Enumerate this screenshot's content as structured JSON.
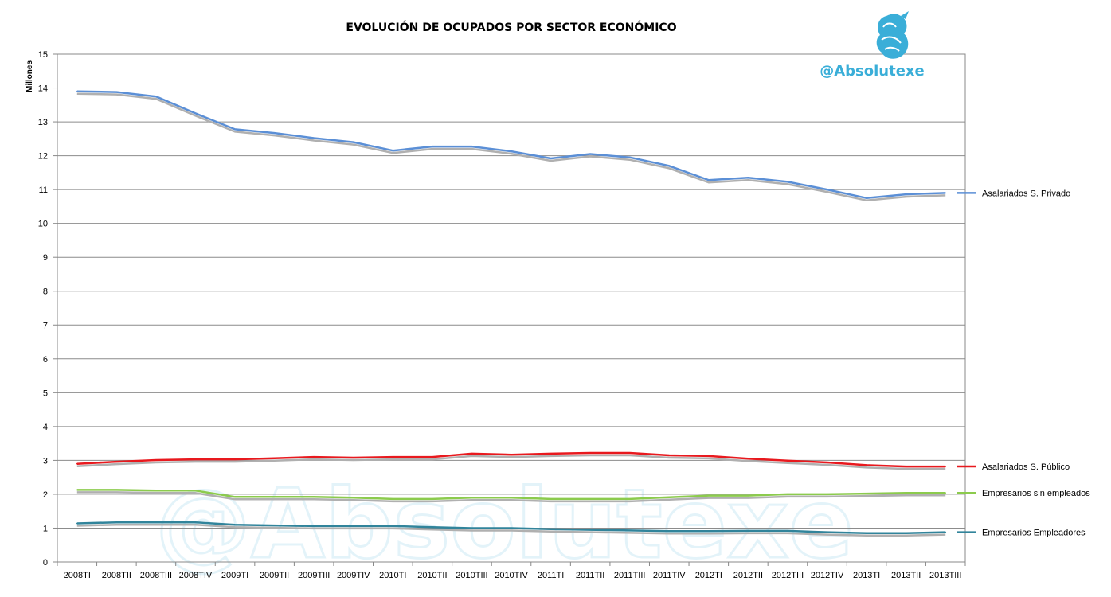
{
  "chart_data": {
    "type": "line",
    "title": "EVOLUCIÓN DE OCUPADOS POR SECTOR ECONÓMICO",
    "ylabel": "Millones",
    "xlabel": "",
    "ylim": [
      0,
      15
    ],
    "yticks": [
      "0",
      "1",
      "2",
      "3",
      "4",
      "5",
      "6",
      "7",
      "8",
      "9",
      "10",
      "11",
      "12",
      "13",
      "14",
      "15"
    ],
    "grid": true,
    "legend_placement": "right",
    "categories": [
      "2008TI",
      "2008TII",
      "2008TIII",
      "2008TIV",
      "2009TI",
      "2009TII",
      "2009TIII",
      "2009TIV",
      "2010TI",
      "2010TII",
      "2010TIII",
      "2010TIV",
      "2011TI",
      "2011TII",
      "2011TIII",
      "2011TIV",
      "2012TI",
      "2012TII",
      "2012TIII",
      "2012TIV",
      "2013TI",
      "2013TII",
      "2013TIII"
    ],
    "series": [
      {
        "name": "Asalariados S. Privado",
        "color": "#5b8fd6",
        "values": [
          13.9,
          13.88,
          13.75,
          13.25,
          12.78,
          12.67,
          12.52,
          12.4,
          12.15,
          12.27,
          12.27,
          12.13,
          11.92,
          12.05,
          11.95,
          11.7,
          11.28,
          11.35,
          11.23,
          11.0,
          10.75,
          10.86,
          10.9
        ]
      },
      {
        "name": "Asalariados S. Público",
        "color": "#e8191e",
        "values": [
          2.9,
          2.96,
          3.01,
          3.03,
          3.03,
          3.06,
          3.1,
          3.08,
          3.1,
          3.1,
          3.2,
          3.17,
          3.2,
          3.22,
          3.22,
          3.15,
          3.13,
          3.05,
          2.99,
          2.94,
          2.86,
          2.82,
          2.82
        ]
      },
      {
        "name": "Empresarios sin empleados",
        "color": "#8ccb4d",
        "values": [
          2.13,
          2.13,
          2.11,
          2.11,
          1.92,
          1.92,
          1.92,
          1.9,
          1.86,
          1.86,
          1.9,
          1.9,
          1.86,
          1.86,
          1.86,
          1.91,
          1.96,
          1.96,
          2.0,
          2.0,
          2.02,
          2.04,
          2.04
        ]
      },
      {
        "name": "Empresarios Empleadores",
        "color": "#31849b",
        "values": [
          1.14,
          1.17,
          1.17,
          1.17,
          1.1,
          1.08,
          1.06,
          1.06,
          1.06,
          1.03,
          1.0,
          1.0,
          0.97,
          0.95,
          0.93,
          0.91,
          0.91,
          0.92,
          0.92,
          0.88,
          0.85,
          0.85,
          0.88
        ]
      }
    ]
  },
  "brand": {
    "handle": "@Absolutexe",
    "watermark_text": "@Absolutexe",
    "logo_icon": "griffin-logo-icon",
    "accent_color": "#3aaed8"
  }
}
